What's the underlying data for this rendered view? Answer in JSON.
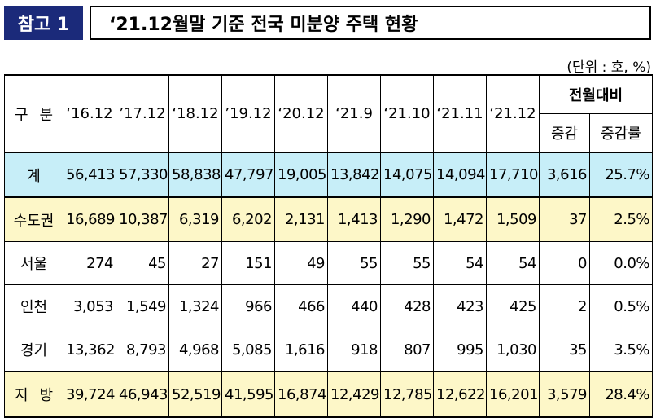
{
  "tag": "참고 1",
  "title": "‘21.12월말 기준 전국 미분양 주택 현황",
  "unit": "(단위 : 호, %)",
  "header": {
    "category": "구 분",
    "years": [
      "‘16.12",
      "’17.12",
      "‘18.12",
      "’19.12",
      "‘20.12",
      "‘21.9",
      "‘21.10",
      "‘21.11",
      "‘21.12"
    ],
    "mom": "전월대비",
    "change": "증감",
    "rate": "증감률"
  },
  "rows": [
    {
      "label": "계",
      "values": [
        "56,413",
        "57,330",
        "58,838",
        "47,797",
        "19,005",
        "13,842",
        "14,075",
        "14,094",
        "17,710"
      ],
      "change": "3,616",
      "rate": "25.7%"
    },
    {
      "label": "수도권",
      "values": [
        "16,689",
        "10,387",
        "6,319",
        "6,202",
        "2,131",
        "1,413",
        "1,290",
        "1,472",
        "1,509"
      ],
      "change": "37",
      "rate": "2.5%"
    },
    {
      "label": "서울",
      "values": [
        "274",
        "45",
        "27",
        "151",
        "49",
        "55",
        "55",
        "54",
        "54"
      ],
      "change": "0",
      "rate": "0.0%"
    },
    {
      "label": "인천",
      "values": [
        "3,053",
        "1,549",
        "1,324",
        "966",
        "466",
        "440",
        "428",
        "423",
        "425"
      ],
      "change": "2",
      "rate": "0.5%"
    },
    {
      "label": "경기",
      "values": [
        "13,362",
        "8,793",
        "4,968",
        "5,085",
        "1,616",
        "918",
        "807",
        "995",
        "1,030"
      ],
      "change": "35",
      "rate": "3.5%"
    },
    {
      "label": "지 방",
      "values": [
        "39,724",
        "46,943",
        "52,519",
        "41,595",
        "16,874",
        "12,429",
        "12,785",
        "12,622",
        "16,201"
      ],
      "change": "3,579",
      "rate": "28.4%"
    }
  ]
}
